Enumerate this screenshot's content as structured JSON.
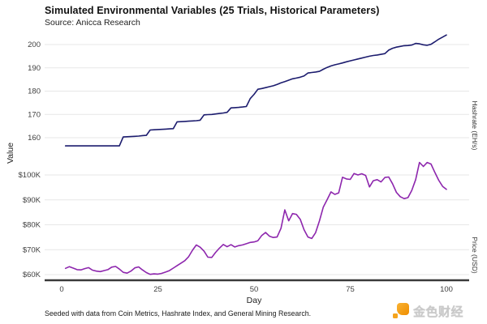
{
  "header": {
    "title": "Simulated Environmental Variables (25 Trials, Historical Parameters)",
    "source": "Source: Anicca Research"
  },
  "axes": {
    "y_left_label": "Value",
    "x_label": "Day",
    "right_strip_top": "Hashrate (EH/s)",
    "right_strip_bottom": "Price (USD)"
  },
  "footer": {
    "note": "Seeded with data from Coin Metrics, Hashrate Index, and General Mining Research.",
    "logo_text": "金色财经"
  },
  "colors": {
    "hashrate_line": "#1c1c6e",
    "price_line": "#8d26ad",
    "grid": "#e7e7e7",
    "axis_line": "#3a3a3a",
    "tick_text": "#3f3f3f",
    "logo_orange": "#f5a41d",
    "logo_gray": "#c9c9c9"
  },
  "chart_data": {
    "type": "line",
    "title": "Simulated Environmental Variables (25 Trials, Historical Parameters)",
    "xlabel": "Day",
    "ylabel": "Value",
    "x_ticks": [
      0,
      25,
      50,
      75,
      100
    ],
    "grid": "horizontal-only",
    "legend_position": "right-strips",
    "day_start": 1,
    "day_end": 100,
    "panels": [
      {
        "name": "Hashrate (EH/s)",
        "color": "#1c1c6e",
        "ylim": [
          155,
          205
        ],
        "y_ticks": [
          160,
          170,
          180,
          190,
          200
        ],
        "y_tick_labels": [
          "160",
          "170",
          "180",
          "190",
          "200"
        ],
        "values": [
          156.5,
          156.5,
          156.5,
          156.5,
          156.5,
          156.5,
          156.5,
          156.5,
          156.5,
          156.5,
          156.5,
          156.5,
          156.5,
          156.5,
          156.5,
          160.3,
          160.4,
          160.5,
          160.6,
          160.7,
          160.9,
          161.0,
          163.3,
          163.4,
          163.5,
          163.6,
          163.7,
          163.8,
          163.9,
          166.8,
          166.9,
          167.0,
          167.1,
          167.2,
          167.3,
          167.5,
          169.8,
          169.9,
          170.0,
          170.2,
          170.4,
          170.6,
          170.9,
          172.8,
          172.9,
          173.0,
          173.2,
          173.4,
          176.8,
          178.6,
          180.8,
          181.1,
          181.5,
          181.9,
          182.3,
          182.9,
          183.6,
          184.1,
          184.7,
          185.3,
          185.6,
          186.0,
          186.5,
          187.8,
          188.0,
          188.2,
          188.5,
          189.4,
          190.2,
          190.8,
          191.3,
          191.7,
          192.1,
          192.6,
          193.0,
          193.4,
          193.8,
          194.2,
          194.6,
          195.0,
          195.3,
          195.5,
          195.8,
          196.1,
          197.6,
          198.4,
          198.9,
          199.2,
          199.5,
          199.6,
          199.8,
          200.5,
          200.3,
          199.9,
          199.7,
          200.1,
          201.2,
          202.3,
          203.2,
          204.1
        ]
      },
      {
        "name": "Price (USD)",
        "color": "#8d26ad",
        "ylim": [
          58,
          107
        ],
        "y_ticks": [
          60,
          70,
          80,
          90,
          100
        ],
        "y_tick_labels": [
          "$60K",
          "$70K",
          "$80K",
          "$90K",
          "$100K"
        ],
        "values": [
          62.5,
          63.2,
          62.6,
          62.0,
          61.9,
          62.4,
          62.8,
          61.8,
          61.4,
          61.2,
          61.6,
          62.0,
          63.0,
          63.3,
          62.2,
          60.9,
          60.6,
          61.4,
          62.7,
          63.1,
          61.9,
          60.8,
          60.1,
          60.3,
          60.2,
          60.5,
          61.0,
          61.6,
          62.6,
          63.6,
          64.6,
          65.6,
          67.2,
          69.8,
          71.9,
          71.0,
          69.4,
          67.0,
          66.9,
          68.9,
          70.6,
          72.1,
          71.2,
          72.0,
          71.1,
          71.6,
          71.9,
          72.4,
          72.9,
          73.1,
          73.6,
          75.7,
          76.9,
          75.4,
          74.9,
          75.1,
          78.6,
          86.0,
          81.6,
          84.5,
          84.2,
          82.2,
          78.0,
          75.1,
          74.5,
          76.8,
          81.6,
          87.1,
          90.1,
          93.2,
          92.2,
          92.8,
          99.1,
          98.4,
          98.2,
          100.6,
          100.0,
          100.5,
          99.8,
          95.2,
          97.7,
          98.1,
          97.2,
          99.0,
          99.2,
          96.5,
          93.0,
          91.3,
          90.5,
          90.9,
          93.8,
          98.1,
          105.0,
          103.4,
          105.0,
          104.4,
          101.0,
          97.9,
          95.4,
          94.2
        ]
      }
    ]
  }
}
